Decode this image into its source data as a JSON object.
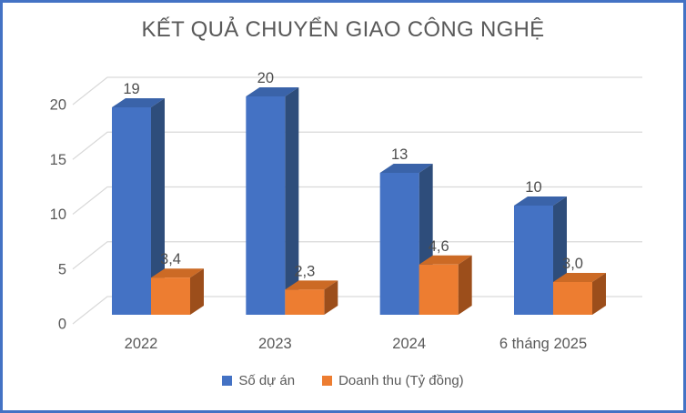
{
  "frame": {
    "border_color": "#4472C4",
    "background": "#FFFFFF"
  },
  "chart_data": {
    "type": "bar",
    "style": "3d-clustered-column",
    "title": "KẾT QUẢ CHUYỂN GIAO CÔNG NGHỆ",
    "categories": [
      "2022",
      "2023",
      "2024",
      "6 tháng 2025"
    ],
    "series": [
      {
        "name": "Số dự án",
        "values": [
          19,
          20,
          13,
          10
        ],
        "labels": [
          "19",
          "20",
          "13",
          "10"
        ],
        "color": "#4472C4",
        "color_top": "#3A63A9",
        "color_side": "#2E4D7B"
      },
      {
        "name": "Doanh thu (Tỷ đồng)",
        "values": [
          3.4,
          2.3,
          4.6,
          3.0
        ],
        "labels": [
          "3,4",
          "2,3",
          "4,6",
          "3,0"
        ],
        "color": "#ED7D31",
        "color_top": "#CC6A25",
        "color_side": "#9C4E1B"
      }
    ],
    "ylim": [
      0,
      20
    ],
    "yticks": [
      "0",
      "5",
      "10",
      "15",
      "20"
    ],
    "grid": true,
    "legend_position": "bottom",
    "gridline_color": "#D9D9D9",
    "text_color": "#595959",
    "value_label_color": "#4D4D4D"
  }
}
